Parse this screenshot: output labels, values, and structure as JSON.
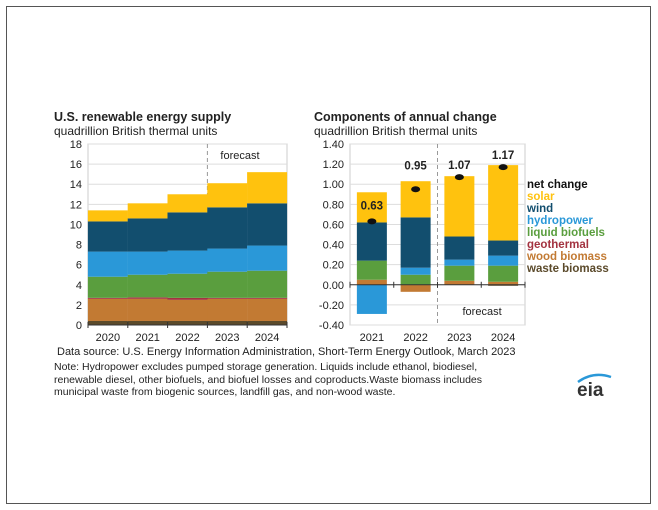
{
  "colors": {
    "solar": "#FFC20E",
    "wind": "#124E6E",
    "hydropower": "#2A98D8",
    "liquid biofuels": "#5A9E3E",
    "geothermal": "#A33340",
    "wood biomass": "#C27A33",
    "waste biomass": "#5B4A2B",
    "net change": "#111111"
  },
  "chart_data": [
    {
      "type": "bar",
      "stacked": true,
      "title": "U.S. renewable energy supply",
      "subtitle": "quadrillion British thermal units",
      "categories": [
        "2020",
        "2021",
        "2022",
        "2023",
        "2024"
      ],
      "ylim": [
        0,
        18
      ],
      "yticks": [
        "0",
        "2",
        "4",
        "6",
        "8",
        "10",
        "12",
        "14",
        "16",
        "18"
      ],
      "grid": true,
      "annotation": "forecast",
      "forecast_from": "2023",
      "series": [
        {
          "key": "waste biomass",
          "values": [
            0.4,
            0.4,
            0.4,
            0.4,
            0.4
          ]
        },
        {
          "key": "wood biomass",
          "values": [
            2.2,
            2.2,
            2.1,
            2.2,
            2.2
          ]
        },
        {
          "key": "geothermal",
          "values": [
            0.1,
            0.15,
            0.2,
            0.1,
            0.1
          ]
        },
        {
          "key": "liquid biofuels",
          "values": [
            2.1,
            2.25,
            2.4,
            2.6,
            2.7
          ]
        },
        {
          "key": "hydropower",
          "values": [
            2.5,
            2.3,
            2.3,
            2.3,
            2.5
          ]
        },
        {
          "key": "wind",
          "values": [
            3.0,
            3.3,
            3.8,
            4.1,
            4.2
          ]
        },
        {
          "key": "solar",
          "values": [
            1.1,
            1.5,
            1.8,
            2.4,
            3.1
          ]
        }
      ]
    },
    {
      "type": "bar",
      "stacked": true,
      "title": "Components of annual change",
      "subtitle": "quadrillion British thermal units",
      "categories": [
        "2021",
        "2022",
        "2023",
        "2024"
      ],
      "ylim": [
        -0.4,
        1.4
      ],
      "yticks": [
        "-0.40",
        "-0.20",
        "0.00",
        "0.20",
        "0.40",
        "0.60",
        "0.80",
        "1.00",
        "1.20",
        "1.40"
      ],
      "grid": true,
      "annotation": "forecast",
      "forecast_from": "2023",
      "legend_position": "right",
      "legend": [
        "net change",
        "solar",
        "wind",
        "hydropower",
        "liquid biofuels",
        "geothermal",
        "wood biomass",
        "waste biomass"
      ],
      "series": [
        {
          "key": "waste biomass",
          "values": [
            0,
            0,
            0,
            -0.01
          ]
        },
        {
          "key": "wood biomass",
          "values": [
            0.05,
            -0.07,
            0.04,
            0.03
          ]
        },
        {
          "key": "geothermal",
          "values": [
            0,
            0,
            0,
            0
          ]
        },
        {
          "key": "liquid biofuels",
          "values": [
            0.19,
            0.1,
            0.15,
            0.16
          ]
        },
        {
          "key": "hydropower",
          "values": [
            -0.29,
            0.07,
            0.06,
            0.1
          ]
        },
        {
          "key": "wind",
          "values": [
            0.38,
            0.5,
            0.23,
            0.15
          ]
        },
        {
          "key": "solar",
          "values": [
            0.3,
            0.36,
            0.6,
            0.75
          ]
        }
      ],
      "net_change": {
        "values": [
          0.63,
          0.95,
          1.07,
          1.17
        ],
        "labels": [
          "0.63",
          "0.95",
          "1.07",
          "1.17"
        ]
      }
    }
  ],
  "footer": {
    "source": "Data source: U.S. Energy Information Administration, Short-Term Energy Outlook, March 2023",
    "note_lines": [
      "Note: Hydropower excludes pumped storage generation. Liquids include ethanol, biodiesel,",
      "renewable diesel, other biofuels, and biofuel losses and coproducts.Waste biomass includes",
      "municipal waste from biogenic sources, landfill gas, and non-wood waste."
    ],
    "logo": "eia"
  }
}
